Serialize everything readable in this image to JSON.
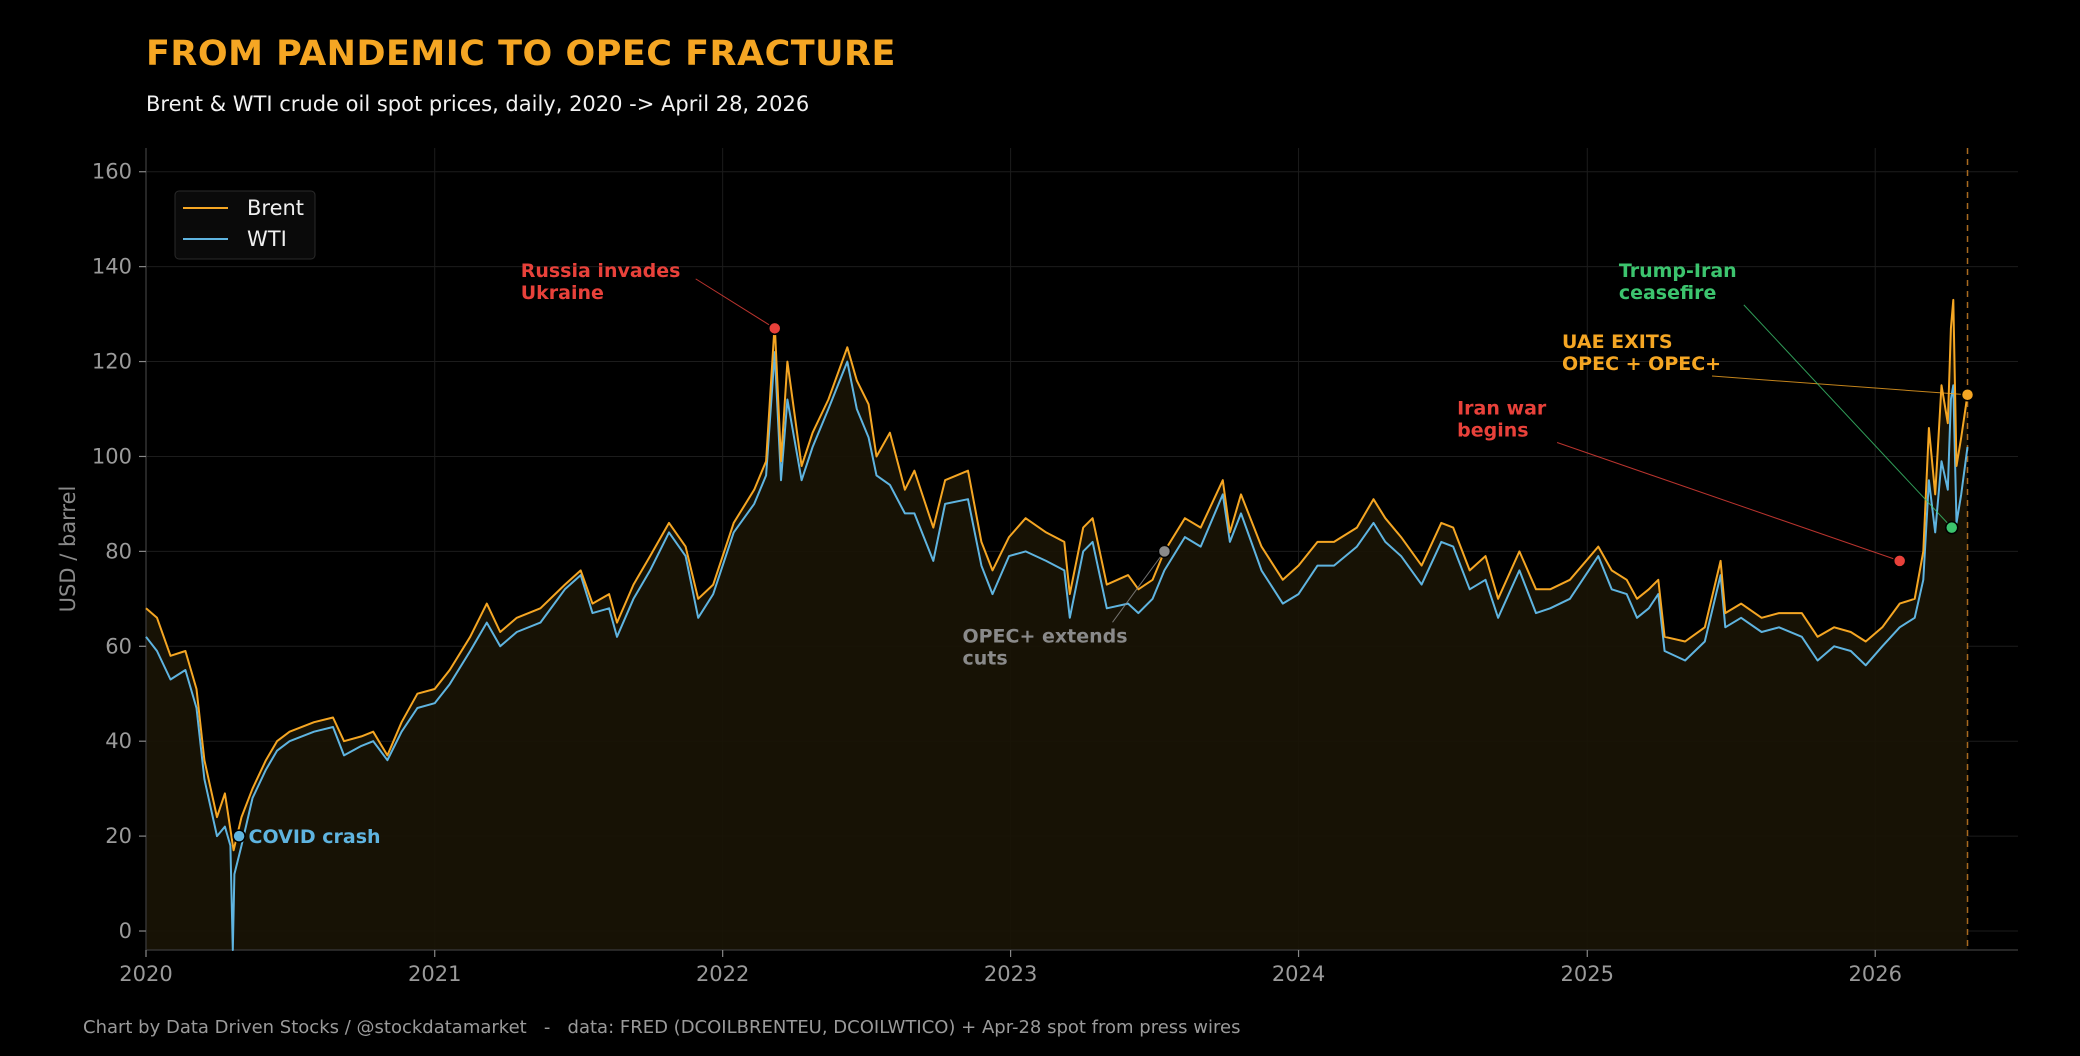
{
  "title": "FROM PANDEMIC TO OPEC FRACTURE",
  "subtitle": "Brent  &  WTI crude oil spot prices, daily, 2020 -> April 28, 2026",
  "footer": "Chart by Data Driven Stocks / @stockdatamarket   -   data: FRED (DCOILBRENTEU, DCOILWTICO) + Apr-28 spot from press wires",
  "colors": {
    "brent": "#f5a623",
    "wti": "#5fb4e0",
    "background": "#000000",
    "red": "#e8413a",
    "green": "#3cc46e",
    "gray": "#8a8a8a"
  },
  "chart_data": {
    "type": "line",
    "ylabel": "USD / barrel",
    "xlim": [
      "2020-01-01",
      "2026-07-01"
    ],
    "ylim": [
      -4,
      165
    ],
    "yticks": [
      0,
      20,
      40,
      60,
      80,
      100,
      120,
      140,
      160
    ],
    "xticks": [
      "2020",
      "2021",
      "2022",
      "2023",
      "2024",
      "2025",
      "2026"
    ],
    "grid": true,
    "legend": {
      "placement": "top-left",
      "entries": [
        "Brent",
        "WTI"
      ]
    },
    "end_marker_date": "2026-04-28",
    "series": [
      {
        "name": "Brent",
        "points": [
          [
            "2020-01-01",
            68
          ],
          [
            "2020-01-15",
            66
          ],
          [
            "2020-02-01",
            58
          ],
          [
            "2020-02-20",
            59
          ],
          [
            "2020-03-05",
            51
          ],
          [
            "2020-03-15",
            36
          ],
          [
            "2020-03-31",
            24
          ],
          [
            "2020-04-10",
            29
          ],
          [
            "2020-04-21",
            17
          ],
          [
            "2020-05-01",
            24
          ],
          [
            "2020-05-15",
            30
          ],
          [
            "2020-06-01",
            36
          ],
          [
            "2020-06-15",
            40
          ],
          [
            "2020-07-01",
            42
          ],
          [
            "2020-08-01",
            44
          ],
          [
            "2020-08-25",
            45
          ],
          [
            "2020-09-08",
            40
          ],
          [
            "2020-09-30",
            41
          ],
          [
            "2020-10-15",
            42
          ],
          [
            "2020-11-02",
            37
          ],
          [
            "2020-11-20",
            44
          ],
          [
            "2020-12-10",
            50
          ],
          [
            "2021-01-01",
            51
          ],
          [
            "2021-01-20",
            55
          ],
          [
            "2021-02-15",
            62
          ],
          [
            "2021-03-08",
            69
          ],
          [
            "2021-03-25",
            63
          ],
          [
            "2021-04-15",
            66
          ],
          [
            "2021-05-15",
            68
          ],
          [
            "2021-06-15",
            73
          ],
          [
            "2021-07-05",
            76
          ],
          [
            "2021-07-20",
            69
          ],
          [
            "2021-08-10",
            71
          ],
          [
            "2021-08-20",
            65
          ],
          [
            "2021-09-10",
            73
          ],
          [
            "2021-10-01",
            79
          ],
          [
            "2021-10-25",
            86
          ],
          [
            "2021-11-15",
            81
          ],
          [
            "2021-12-01",
            70
          ],
          [
            "2021-12-20",
            73
          ],
          [
            "2022-01-15",
            86
          ],
          [
            "2022-02-10",
            93
          ],
          [
            "2022-02-25",
            99
          ],
          [
            "2022-03-08",
            128
          ],
          [
            "2022-03-16",
            99
          ],
          [
            "2022-03-24",
            120
          ],
          [
            "2022-04-11",
            98
          ],
          [
            "2022-04-25",
            105
          ],
          [
            "2022-05-15",
            112
          ],
          [
            "2022-06-08",
            123
          ],
          [
            "2022-06-20",
            116
          ],
          [
            "2022-07-05",
            111
          ],
          [
            "2022-07-15",
            100
          ],
          [
            "2022-08-01",
            105
          ],
          [
            "2022-08-20",
            93
          ],
          [
            "2022-09-01",
            97
          ],
          [
            "2022-09-25",
            85
          ],
          [
            "2022-10-10",
            95
          ],
          [
            "2022-11-08",
            97
          ],
          [
            "2022-11-25",
            82
          ],
          [
            "2022-12-09",
            76
          ],
          [
            "2022-12-30",
            83
          ],
          [
            "2023-01-20",
            87
          ],
          [
            "2023-02-15",
            84
          ],
          [
            "2023-03-10",
            82
          ],
          [
            "2023-03-17",
            71
          ],
          [
            "2023-04-03",
            85
          ],
          [
            "2023-04-15",
            87
          ],
          [
            "2023-05-03",
            73
          ],
          [
            "2023-05-30",
            75
          ],
          [
            "2023-06-12",
            72
          ],
          [
            "2023-06-30",
            74
          ],
          [
            "2023-07-15",
            80
          ],
          [
            "2023-08-10",
            87
          ],
          [
            "2023-08-30",
            85
          ],
          [
            "2023-09-27",
            95
          ],
          [
            "2023-10-06",
            84
          ],
          [
            "2023-10-20",
            92
          ],
          [
            "2023-11-15",
            81
          ],
          [
            "2023-12-12",
            74
          ],
          [
            "2024-01-01",
            77
          ],
          [
            "2024-01-25",
            82
          ],
          [
            "2024-02-15",
            82
          ],
          [
            "2024-03-15",
            85
          ],
          [
            "2024-04-05",
            91
          ],
          [
            "2024-04-20",
            87
          ],
          [
            "2024-05-10",
            83
          ],
          [
            "2024-06-05",
            77
          ],
          [
            "2024-06-30",
            86
          ],
          [
            "2024-07-15",
            85
          ],
          [
            "2024-08-05",
            76
          ],
          [
            "2024-08-25",
            79
          ],
          [
            "2024-09-10",
            70
          ],
          [
            "2024-10-07",
            80
          ],
          [
            "2024-10-28",
            72
          ],
          [
            "2024-11-15",
            72
          ],
          [
            "2024-12-10",
            74
          ],
          [
            "2025-01-15",
            81
          ],
          [
            "2025-02-01",
            76
          ],
          [
            "2025-02-20",
            74
          ],
          [
            "2025-03-05",
            70
          ],
          [
            "2025-03-20",
            72
          ],
          [
            "2025-04-01",
            74
          ],
          [
            "2025-04-09",
            62
          ],
          [
            "2025-05-05",
            61
          ],
          [
            "2025-05-30",
            64
          ],
          [
            "2025-06-19",
            78
          ],
          [
            "2025-06-25",
            67
          ],
          [
            "2025-07-15",
            69
          ],
          [
            "2025-08-10",
            66
          ],
          [
            "2025-09-01",
            67
          ],
          [
            "2025-09-30",
            67
          ],
          [
            "2025-10-20",
            62
          ],
          [
            "2025-11-10",
            64
          ],
          [
            "2025-12-01",
            63
          ],
          [
            "2025-12-20",
            61
          ],
          [
            "2026-01-10",
            64
          ],
          [
            "2026-02-01",
            69
          ],
          [
            "2026-02-20",
            70
          ],
          [
            "2026-03-03",
            80
          ],
          [
            "2026-03-10",
            106
          ],
          [
            "2026-03-18",
            92
          ],
          [
            "2026-03-26",
            115
          ],
          [
            "2026-04-03",
            107
          ],
          [
            "2026-04-07",
            127
          ],
          [
            "2026-04-10",
            133
          ],
          [
            "2026-04-14",
            98
          ],
          [
            "2026-04-20",
            104
          ],
          [
            "2026-04-28",
            113
          ]
        ]
      },
      {
        "name": "WTI",
        "points": [
          [
            "2020-01-01",
            62
          ],
          [
            "2020-01-15",
            59
          ],
          [
            "2020-02-01",
            53
          ],
          [
            "2020-02-20",
            55
          ],
          [
            "2020-03-05",
            47
          ],
          [
            "2020-03-15",
            32
          ],
          [
            "2020-03-31",
            20
          ],
          [
            "2020-04-10",
            22
          ],
          [
            "2020-04-17",
            18
          ],
          [
            "2020-04-20",
            -4
          ],
          [
            "2020-04-22",
            12
          ],
          [
            "2020-05-01",
            18
          ],
          [
            "2020-05-15",
            28
          ],
          [
            "2020-06-01",
            34
          ],
          [
            "2020-06-15",
            38
          ],
          [
            "2020-07-01",
            40
          ],
          [
            "2020-08-01",
            42
          ],
          [
            "2020-08-25",
            43
          ],
          [
            "2020-09-08",
            37
          ],
          [
            "2020-09-30",
            39
          ],
          [
            "2020-10-15",
            40
          ],
          [
            "2020-11-02",
            36
          ],
          [
            "2020-11-20",
            42
          ],
          [
            "2020-12-10",
            47
          ],
          [
            "2021-01-01",
            48
          ],
          [
            "2021-01-20",
            52
          ],
          [
            "2021-02-15",
            59
          ],
          [
            "2021-03-08",
            65
          ],
          [
            "2021-03-25",
            60
          ],
          [
            "2021-04-15",
            63
          ],
          [
            "2021-05-15",
            65
          ],
          [
            "2021-06-15",
            72
          ],
          [
            "2021-07-05",
            75
          ],
          [
            "2021-07-20",
            67
          ],
          [
            "2021-08-10",
            68
          ],
          [
            "2021-08-20",
            62
          ],
          [
            "2021-09-10",
            70
          ],
          [
            "2021-10-01",
            76
          ],
          [
            "2021-10-25",
            84
          ],
          [
            "2021-11-15",
            79
          ],
          [
            "2021-12-01",
            66
          ],
          [
            "2021-12-20",
            71
          ],
          [
            "2022-01-15",
            84
          ],
          [
            "2022-02-10",
            90
          ],
          [
            "2022-02-25",
            96
          ],
          [
            "2022-03-08",
            122
          ],
          [
            "2022-03-16",
            95
          ],
          [
            "2022-03-24",
            112
          ],
          [
            "2022-04-11",
            95
          ],
          [
            "2022-04-25",
            102
          ],
          [
            "2022-05-15",
            110
          ],
          [
            "2022-06-08",
            120
          ],
          [
            "2022-06-20",
            110
          ],
          [
            "2022-07-05",
            104
          ],
          [
            "2022-07-15",
            96
          ],
          [
            "2022-08-01",
            94
          ],
          [
            "2022-08-20",
            88
          ],
          [
            "2022-09-01",
            88
          ],
          [
            "2022-09-25",
            78
          ],
          [
            "2022-10-10",
            90
          ],
          [
            "2022-11-08",
            91
          ],
          [
            "2022-11-25",
            77
          ],
          [
            "2022-12-09",
            71
          ],
          [
            "2022-12-30",
            79
          ],
          [
            "2023-01-20",
            80
          ],
          [
            "2023-02-15",
            78
          ],
          [
            "2023-03-10",
            76
          ],
          [
            "2023-03-17",
            66
          ],
          [
            "2023-04-03",
            80
          ],
          [
            "2023-04-15",
            82
          ],
          [
            "2023-05-03",
            68
          ],
          [
            "2023-05-30",
            69
          ],
          [
            "2023-06-12",
            67
          ],
          [
            "2023-06-30",
            70
          ],
          [
            "2023-07-15",
            76
          ],
          [
            "2023-08-10",
            83
          ],
          [
            "2023-08-30",
            81
          ],
          [
            "2023-09-27",
            92
          ],
          [
            "2023-10-06",
            82
          ],
          [
            "2023-10-20",
            88
          ],
          [
            "2023-11-15",
            76
          ],
          [
            "2023-12-12",
            69
          ],
          [
            "2024-01-01",
            71
          ],
          [
            "2024-01-25",
            77
          ],
          [
            "2024-02-15",
            77
          ],
          [
            "2024-03-15",
            81
          ],
          [
            "2024-04-05",
            86
          ],
          [
            "2024-04-20",
            82
          ],
          [
            "2024-05-10",
            79
          ],
          [
            "2024-06-05",
            73
          ],
          [
            "2024-06-30",
            82
          ],
          [
            "2024-07-15",
            81
          ],
          [
            "2024-08-05",
            72
          ],
          [
            "2024-08-25",
            74
          ],
          [
            "2024-09-10",
            66
          ],
          [
            "2024-10-07",
            76
          ],
          [
            "2024-10-28",
            67
          ],
          [
            "2024-11-15",
            68
          ],
          [
            "2024-12-10",
            70
          ],
          [
            "2025-01-15",
            79
          ],
          [
            "2025-02-01",
            72
          ],
          [
            "2025-02-20",
            71
          ],
          [
            "2025-03-05",
            66
          ],
          [
            "2025-03-20",
            68
          ],
          [
            "2025-04-01",
            71
          ],
          [
            "2025-04-09",
            59
          ],
          [
            "2025-05-05",
            57
          ],
          [
            "2025-05-30",
            61
          ],
          [
            "2025-06-19",
            75
          ],
          [
            "2025-06-25",
            64
          ],
          [
            "2025-07-15",
            66
          ],
          [
            "2025-08-10",
            63
          ],
          [
            "2025-09-01",
            64
          ],
          [
            "2025-09-30",
            62
          ],
          [
            "2025-10-20",
            57
          ],
          [
            "2025-11-10",
            60
          ],
          [
            "2025-12-01",
            59
          ],
          [
            "2025-12-20",
            56
          ],
          [
            "2026-01-10",
            60
          ],
          [
            "2026-02-01",
            64
          ],
          [
            "2026-02-20",
            66
          ],
          [
            "2026-03-03",
            74
          ],
          [
            "2026-03-10",
            95
          ],
          [
            "2026-03-18",
            84
          ],
          [
            "2026-03-26",
            99
          ],
          [
            "2026-04-03",
            93
          ],
          [
            "2026-04-07",
            112
          ],
          [
            "2026-04-10",
            115
          ],
          [
            "2026-04-14",
            86
          ],
          [
            "2026-04-20",
            92
          ],
          [
            "2026-04-28",
            102
          ]
        ]
      }
    ],
    "annotations": [
      {
        "id": "covid",
        "text": [
          "COVID crash"
        ],
        "date": "2020-04-28",
        "value": 20,
        "color": "#5fb4e0",
        "text_at": [
          "2020-05-10",
          20
        ]
      },
      {
        "id": "russia",
        "text": [
          "Russia invades",
          "Ukraine"
        ],
        "date": "2022-03-08",
        "value": 127,
        "color": "#e8413a",
        "text_at": [
          "2021-04-20",
          137
        ]
      },
      {
        "id": "opec-extends",
        "text": [
          "OPEC+ extends",
          "cuts"
        ],
        "date": "2023-07-15",
        "value": 80,
        "color": "#8a8a8a",
        "text_at": [
          "2022-11-01",
          60
        ]
      },
      {
        "id": "iran-war",
        "text": [
          "Iran war",
          "begins"
        ],
        "date": "2026-02-01",
        "value": 78,
        "color": "#e8413a",
        "text_at": [
          "2024-07-20",
          108
        ]
      },
      {
        "id": "uae-exits",
        "text": [
          "UAE EXITS",
          "OPEC + OPEC+"
        ],
        "date": "2026-04-28",
        "value": 113,
        "color": "#f5a623",
        "text_at": [
          "2024-11-30",
          122
        ]
      },
      {
        "id": "ceasefire",
        "text": [
          "Trump-Iran",
          "ceasefire"
        ],
        "date": "2026-04-08",
        "value": 85,
        "color": "#3cc46e",
        "text_at": [
          "2025-02-10",
          137
        ]
      }
    ]
  }
}
